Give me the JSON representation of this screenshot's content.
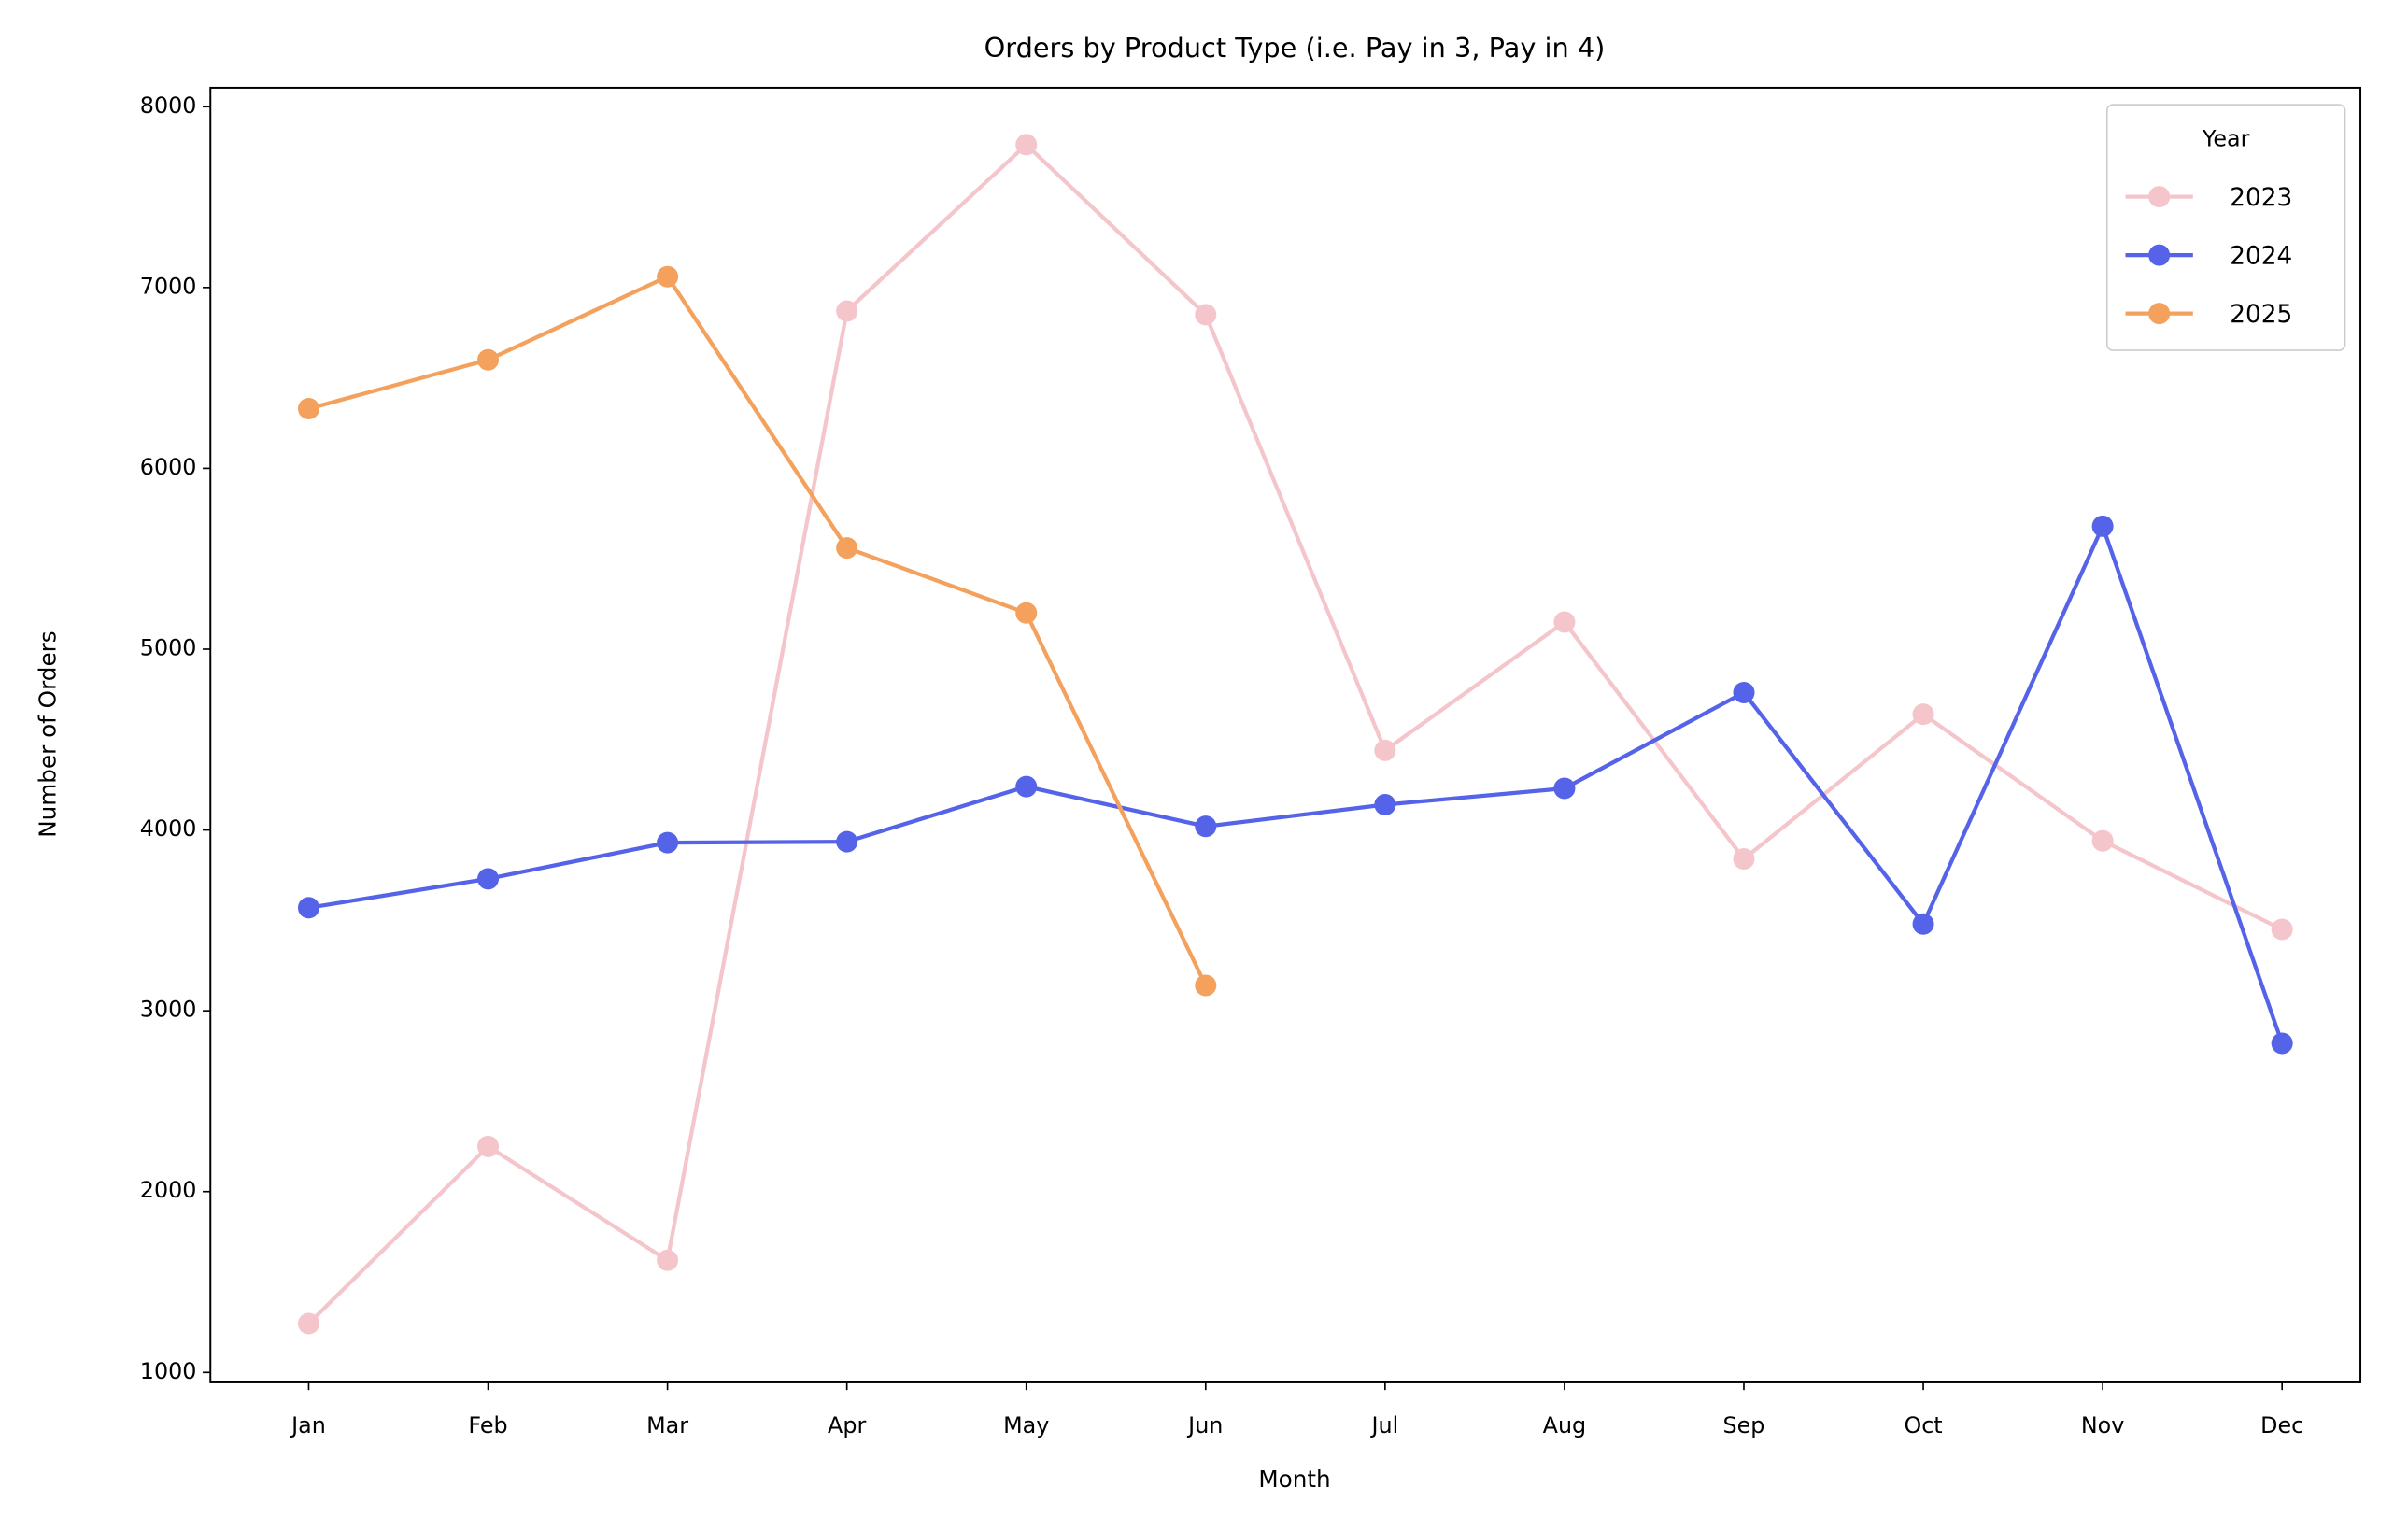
{
  "chart_data": {
    "type": "line",
    "title": "Orders by Product Type (i.e. Pay in 3, Pay in 4)",
    "x_label": "Month",
    "y_label": "Number of Orders",
    "categories": [
      "Jan",
      "Feb",
      "Mar",
      "Apr",
      "May",
      "Jun",
      "Jul",
      "Aug",
      "Sep",
      "Oct",
      "Nov",
      "Dec"
    ],
    "series": [
      {
        "name": "2023",
        "color": "#f4c6cc",
        "values": [
          1270,
          2250,
          1620,
          6870,
          7790,
          6850,
          4440,
          5150,
          3840,
          4640,
          3940,
          3450
        ]
      },
      {
        "name": "2024",
        "color": "#5563e8",
        "values": [
          3570,
          3730,
          3930,
          3935,
          4240,
          4020,
          4140,
          4230,
          4760,
          3480,
          5680,
          2820
        ]
      },
      {
        "name": "2025",
        "color": "#f4a15d",
        "values": [
          6330,
          6600,
          7060,
          5560,
          5200,
          3140,
          null,
          null,
          null,
          null,
          null,
          null
        ]
      }
    ],
    "legend_title": "Year",
    "legend": "upper right",
    "ylim": [
      945,
      8105
    ],
    "yticks": [
      1000,
      2000,
      3000,
      4000,
      5000,
      6000,
      7000,
      8000
    ],
    "grid": false
  }
}
